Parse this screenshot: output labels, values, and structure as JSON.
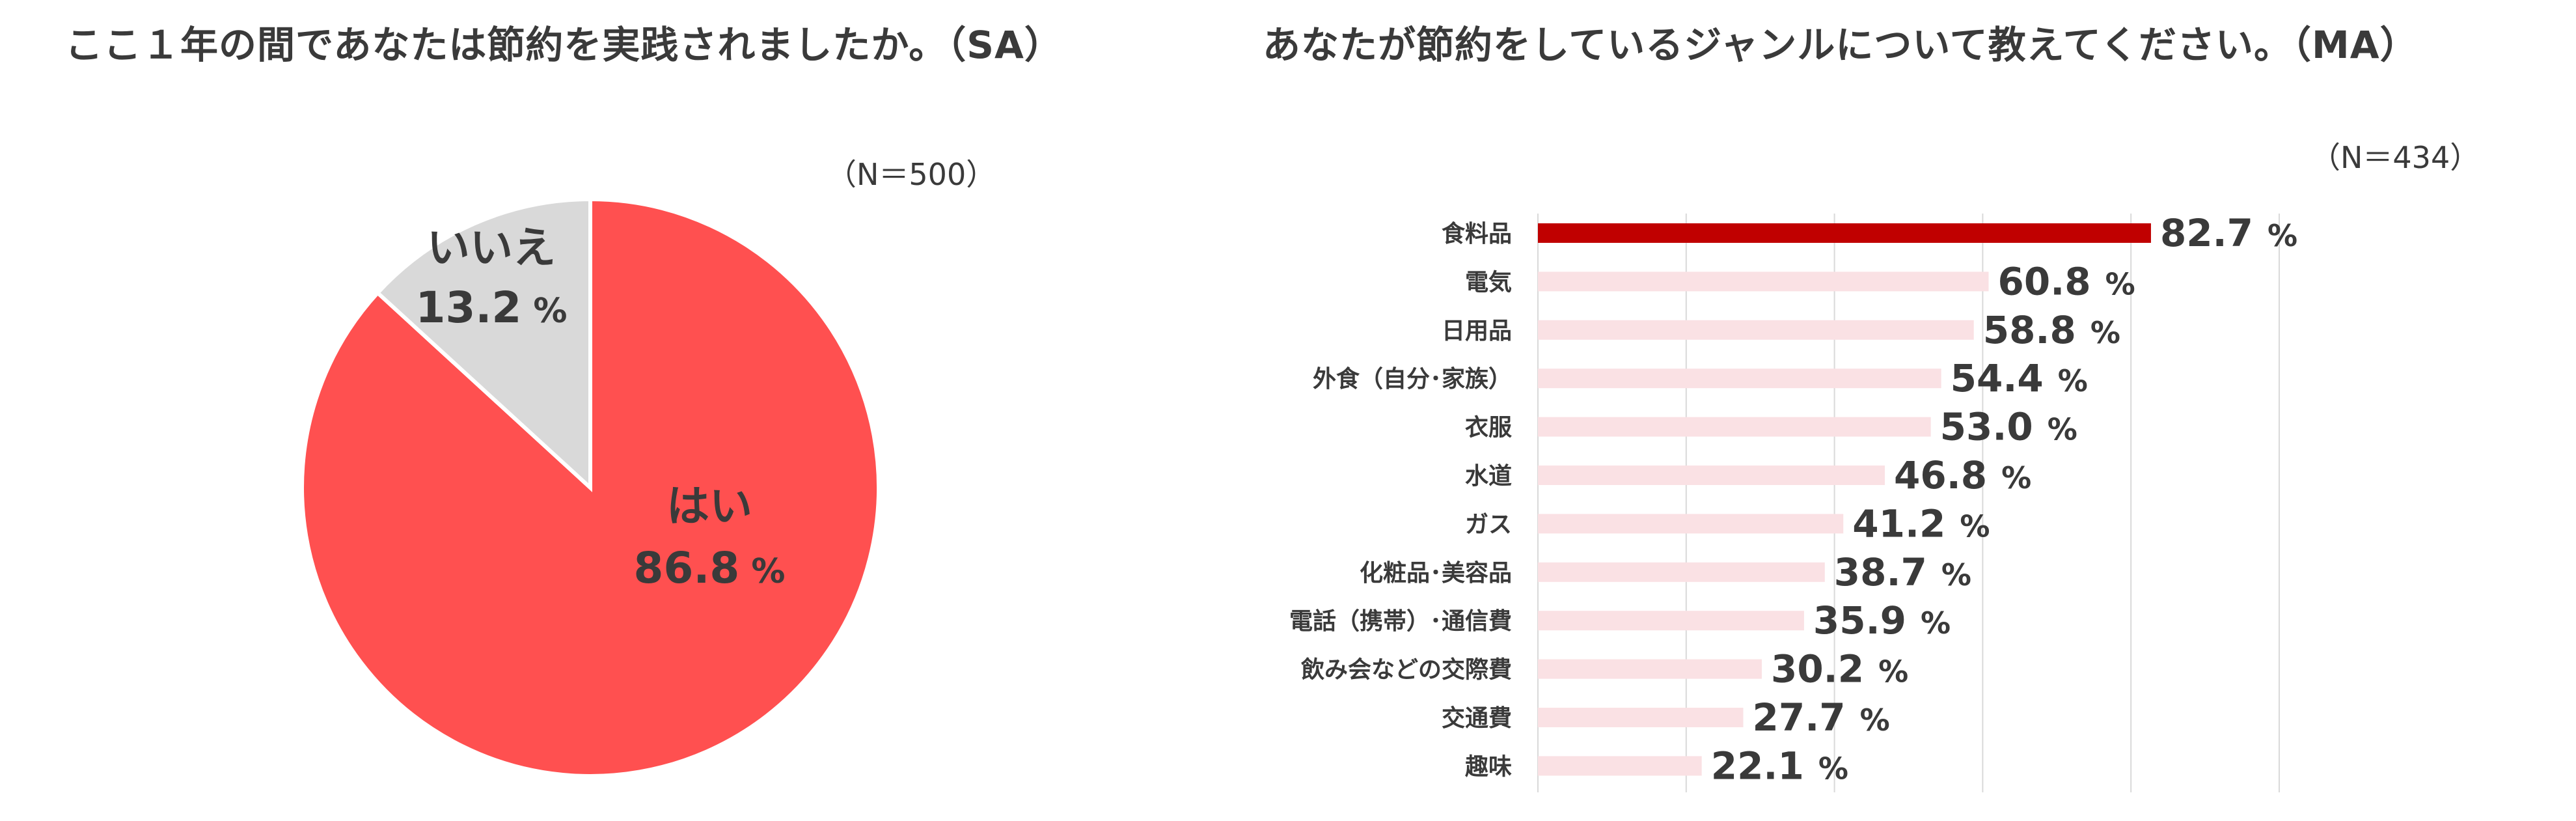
{
  "chart_data": [
    {
      "type": "pie",
      "title": "ここ１年の間であなたは節約を実践されましたか。（SA）",
      "n_label": "（N＝500）",
      "unit": "%",
      "slices": [
        {
          "label": "はい",
          "value": 86.8,
          "color": "#ff5050"
        },
        {
          "label": "いいえ",
          "value": 13.2,
          "color": "#d9d9d9"
        }
      ]
    },
    {
      "type": "bar",
      "orientation": "horizontal",
      "title": "あなたが節約をしているジャンルについて教えてください。（MA）",
      "n_label": "（N＝434）",
      "unit": "%",
      "xlim": [
        0,
        100
      ],
      "grid": true,
      "categories": [
        "食料品",
        "電気",
        "日用品",
        "外食（自分･家族）",
        "衣服",
        "水道",
        "ガス",
        "化粧品･美容品",
        "電話（携帯）･通信費",
        "飲み会などの交際費",
        "交通費",
        "趣味"
      ],
      "values": [
        82.7,
        60.8,
        58.8,
        54.4,
        53.0,
        46.8,
        41.2,
        38.7,
        35.9,
        30.2,
        27.7,
        22.1
      ],
      "value_labels": [
        "82.7",
        "60.8",
        "58.8",
        "54.4",
        "53.0",
        "46.8",
        "41.2",
        "38.7",
        "35.9",
        "30.2",
        "27.7",
        "22.1"
      ],
      "highlight_color": "#c00000",
      "bar_color": "#fae1e4"
    }
  ]
}
